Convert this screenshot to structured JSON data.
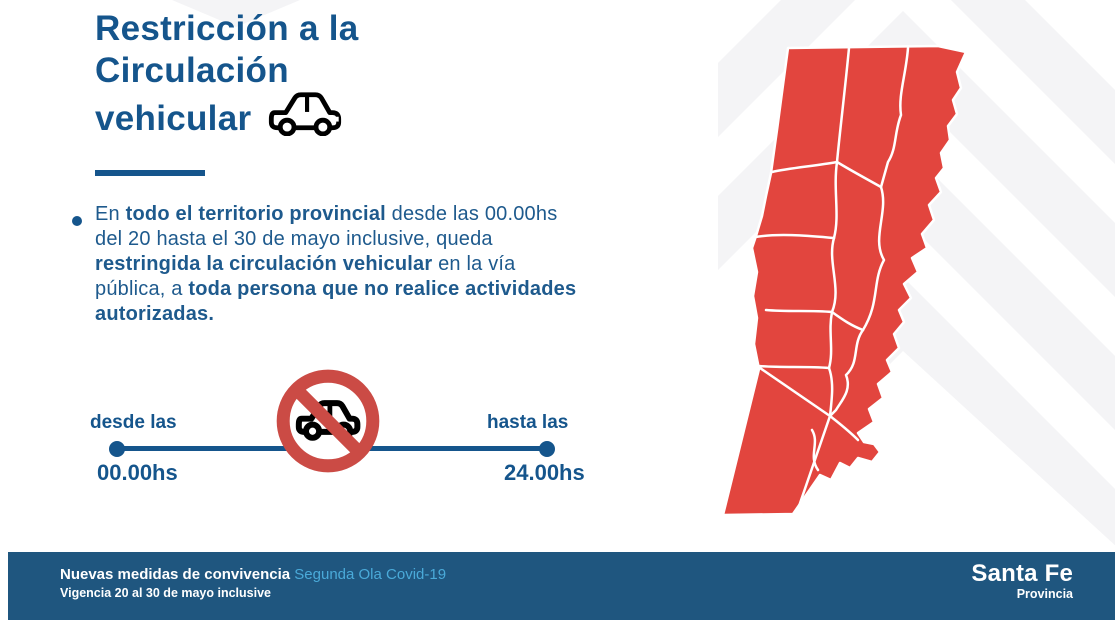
{
  "title": {
    "lines": [
      "Restricción a la",
      "Circulación",
      "vehicular"
    ]
  },
  "intro": {
    "segments": [
      {
        "text": "En ",
        "bold": false
      },
      {
        "text": "todo el territorio provincial",
        "bold": true
      },
      {
        "text": " desde las 00.00hs del 20 hasta el 30 de mayo inclusive, queda ",
        "bold": false
      },
      {
        "text": "restringida la circulación vehicular",
        "bold": true
      },
      {
        "text": " en la vía pública, a ",
        "bold": false
      },
      {
        "text": "toda persona que no realice actividades autorizadas.",
        "bold": true
      }
    ]
  },
  "timeline": {
    "from_label": "desde las",
    "from_time": "00.00hs",
    "to_label": "hasta las",
    "to_time": "24.00hs"
  },
  "footer": {
    "headline": "Nuevas medidas de convivencia",
    "headline_tag": "Segunda Ola Covid-19",
    "validity": "Vigencia 20 al 30 de mayo inclusive",
    "brand": "Santa Fe",
    "brand_sub": "Provincia"
  },
  "icons": {
    "title_car": "car-icon",
    "prohibition": "no-car-prohibition-icon",
    "map": "santa-fe-province-map",
    "background": "chevron-pattern"
  },
  "colors": {
    "primary_blue": "#15558c",
    "body_blue": "#1e5a8d",
    "footer_blue": "#1f567f",
    "accent_light_blue": "#4aaad9",
    "map_red": "#e2453e",
    "sign_red": "#cb4b45",
    "chevron_gray": "#f4f4f6"
  }
}
